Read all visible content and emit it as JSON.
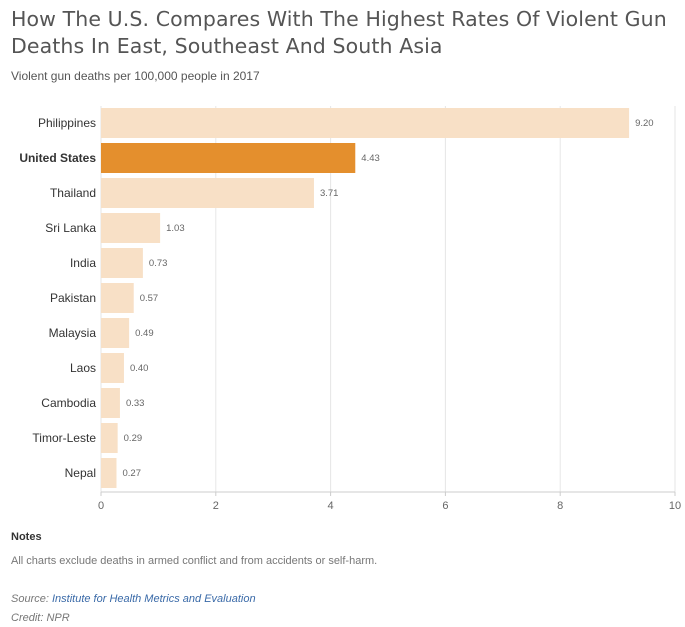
{
  "title": "How The U.S. Compares With The Highest Rates Of Violent Gun Deaths In East, Southeast And South Asia",
  "subtitle": "Violent gun deaths per 100,000 people in 2017",
  "notes": {
    "heading": "Notes",
    "text": "All charts exclude deaths in armed conflict and from accidents or self-harm."
  },
  "source": {
    "label": "Source:",
    "link_text": "Institute for Health Metrics and Evaluation"
  },
  "credit": "Credit: NPR",
  "colors": {
    "bar": "#f8e0c6",
    "highlight": "#e48f2d",
    "grid": "#e6e6e6"
  },
  "chart_data": {
    "type": "bar",
    "orientation": "horizontal",
    "categories": [
      "Philippines",
      "United States",
      "Thailand",
      "Sri Lanka",
      "India",
      "Pakistan",
      "Malaysia",
      "Laos",
      "Cambodia",
      "Timor-Leste",
      "Nepal"
    ],
    "values": [
      9.2,
      4.43,
      3.71,
      1.03,
      0.73,
      0.57,
      0.49,
      0.4,
      0.33,
      0.29,
      0.27
    ],
    "value_labels": [
      "9.20",
      "4.43",
      "3.71",
      "1.03",
      "0.73",
      "0.57",
      "0.49",
      "0.40",
      "0.33",
      "0.29",
      "0.27"
    ],
    "highlight": "United States",
    "xlim": [
      0,
      10
    ],
    "xticks": [
      0,
      2,
      4,
      6,
      8,
      10
    ],
    "grid": true
  }
}
